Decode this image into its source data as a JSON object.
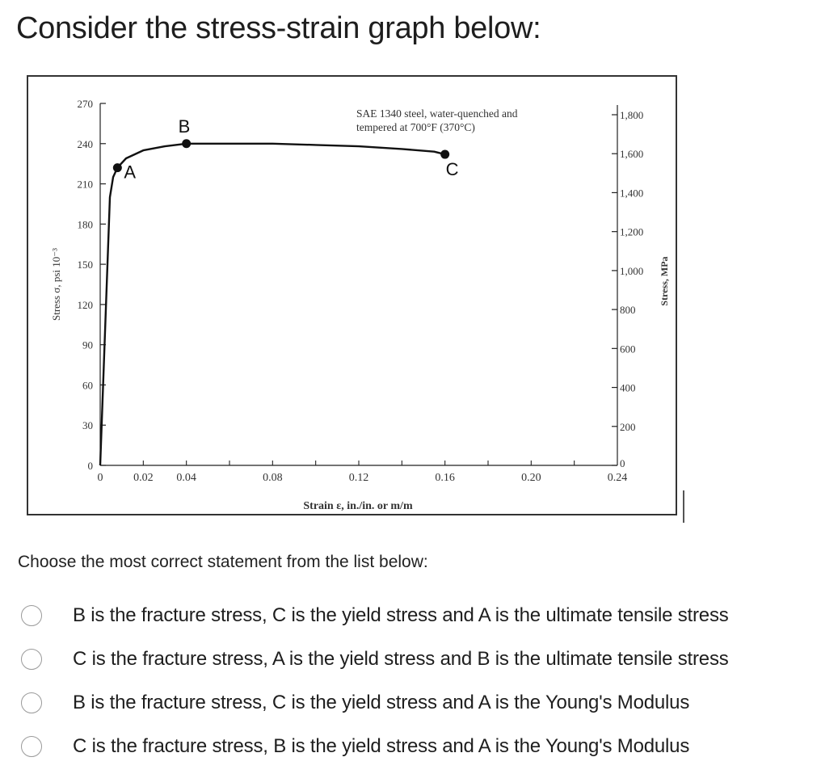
{
  "question": {
    "title": "Consider the stress-strain graph below:",
    "prompt": "Choose the most correct statement from the list below:",
    "options": [
      {
        "label": "B is the fracture stress, C is the yield stress and A is the ultimate tensile stress",
        "selected": false
      },
      {
        "label": "C  is the fracture stress, A is the yield stress and B is the ultimate tensile stress",
        "selected": false
      },
      {
        "label": "B is the fracture stress, C is the yield stress and A is the Young's Modulus",
        "selected": false
      },
      {
        "label": "C is the fracture stress, B is the yield stress and A is the Young's Modulus",
        "selected": false
      }
    ]
  },
  "chart_data": {
    "type": "line",
    "annotation": "SAE 1340 steel, water-quenched and\ntempered at 700°F (370°C)",
    "xlabel": "Strain ε, in./in. or m/m",
    "ylabel": "Stress σ, psi 10⁻³",
    "y2label": "Stress, MPa",
    "xlim": [
      0,
      0.24
    ],
    "ylim": [
      0,
      270
    ],
    "x_ticks": [
      0,
      0.02,
      0.04,
      0.08,
      0.12,
      0.16,
      0.2,
      0.24
    ],
    "x_tick_labels": [
      "0",
      "0.02",
      "0.04",
      "0.08",
      "0.12",
      "0.16",
      "0.20",
      "0.24"
    ],
    "y_ticks": [
      0,
      30,
      60,
      90,
      120,
      150,
      180,
      210,
      240,
      270
    ],
    "y_tick_labels": [
      "0",
      "30",
      "60",
      "90",
      "120",
      "150",
      "180",
      "210",
      "240",
      "270"
    ],
    "y2_ticks": [
      0,
      200,
      400,
      600,
      800,
      1000,
      1200,
      1400,
      1600,
      1800
    ],
    "y2_tick_labels": [
      "0",
      "200",
      "400",
      "600",
      "800",
      "1,000",
      "1,200",
      "1,400",
      "1,600",
      "1,800"
    ],
    "series": [
      {
        "x": [
          0,
          0.0045,
          0.006,
          0.008,
          0.012,
          0.02,
          0.03,
          0.04,
          0.06,
          0.08,
          0.1,
          0.12,
          0.14,
          0.155,
          0.16
        ],
        "y": [
          0,
          200,
          215,
          222,
          229,
          235,
          238,
          240,
          240,
          240,
          239,
          238,
          236,
          234,
          232
        ]
      }
    ],
    "points": [
      {
        "label": "A",
        "x": 0.008,
        "y": 222
      },
      {
        "label": "B",
        "x": 0.04,
        "y": 240
      },
      {
        "label": "C",
        "x": 0.16,
        "y": 232
      }
    ],
    "grid": false,
    "line_color": "#111111"
  }
}
